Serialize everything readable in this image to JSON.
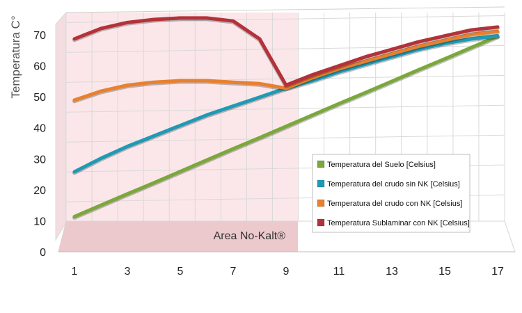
{
  "chart_data": {
    "type": "line",
    "ylabel": "Temperatura C°",
    "xlabel": "",
    "title": "",
    "x": [
      1,
      2,
      3,
      4,
      5,
      6,
      7,
      8,
      9,
      10,
      11,
      12,
      13,
      14,
      15,
      16,
      17
    ],
    "x_tick_labels": [
      "1",
      "3",
      "5",
      "7",
      "9",
      "11",
      "13",
      "15",
      "17"
    ],
    "y_tick_labels": [
      "0",
      "10",
      "20",
      "30",
      "40",
      "50",
      "60",
      "70"
    ],
    "ylim": [
      0,
      75
    ],
    "grid": true,
    "legend_position": "right-center",
    "highlight_region": {
      "label": "Area No-Kalt®",
      "x_range": [
        1,
        9
      ],
      "color": "#fbe7e9"
    },
    "series": [
      {
        "name": "Temperatura del Suelo [Celsius]",
        "color": "#7aa83a",
        "values": [
          5.5,
          9.3,
          13.1,
          16.8,
          20.6,
          24.4,
          28.2,
          31.9,
          35.7,
          39.5,
          43.3,
          47.0,
          50.8,
          54.6,
          58.3,
          62.1,
          65.9
        ]
      },
      {
        "name": "Temperatura del crudo sin NK [Celsius]",
        "color": "#1f9ab5",
        "values": [
          20.5,
          25,
          29,
          32.5,
          36,
          39.5,
          42.5,
          45.5,
          48.5,
          51,
          54,
          56.5,
          59,
          61.5,
          63.5,
          65,
          66
        ]
      },
      {
        "name": "Temperatura del crudo con NK [Celsius]",
        "color": "#e8802f",
        "values": [
          44.5,
          47.5,
          49.5,
          50.5,
          51,
          51,
          50.5,
          50,
          48.5,
          52,
          55,
          57.5,
          60,
          62.5,
          64.5,
          66.5,
          67.5
        ]
      },
      {
        "name": "Temperatura Sublaminar con NK [Celsius]",
        "color": "#b3323a",
        "values": [
          65,
          68.5,
          70.5,
          71.5,
          72,
          72,
          71,
          65,
          49.5,
          53,
          56,
          59,
          61.5,
          64,
          66,
          68,
          69
        ]
      }
    ]
  }
}
